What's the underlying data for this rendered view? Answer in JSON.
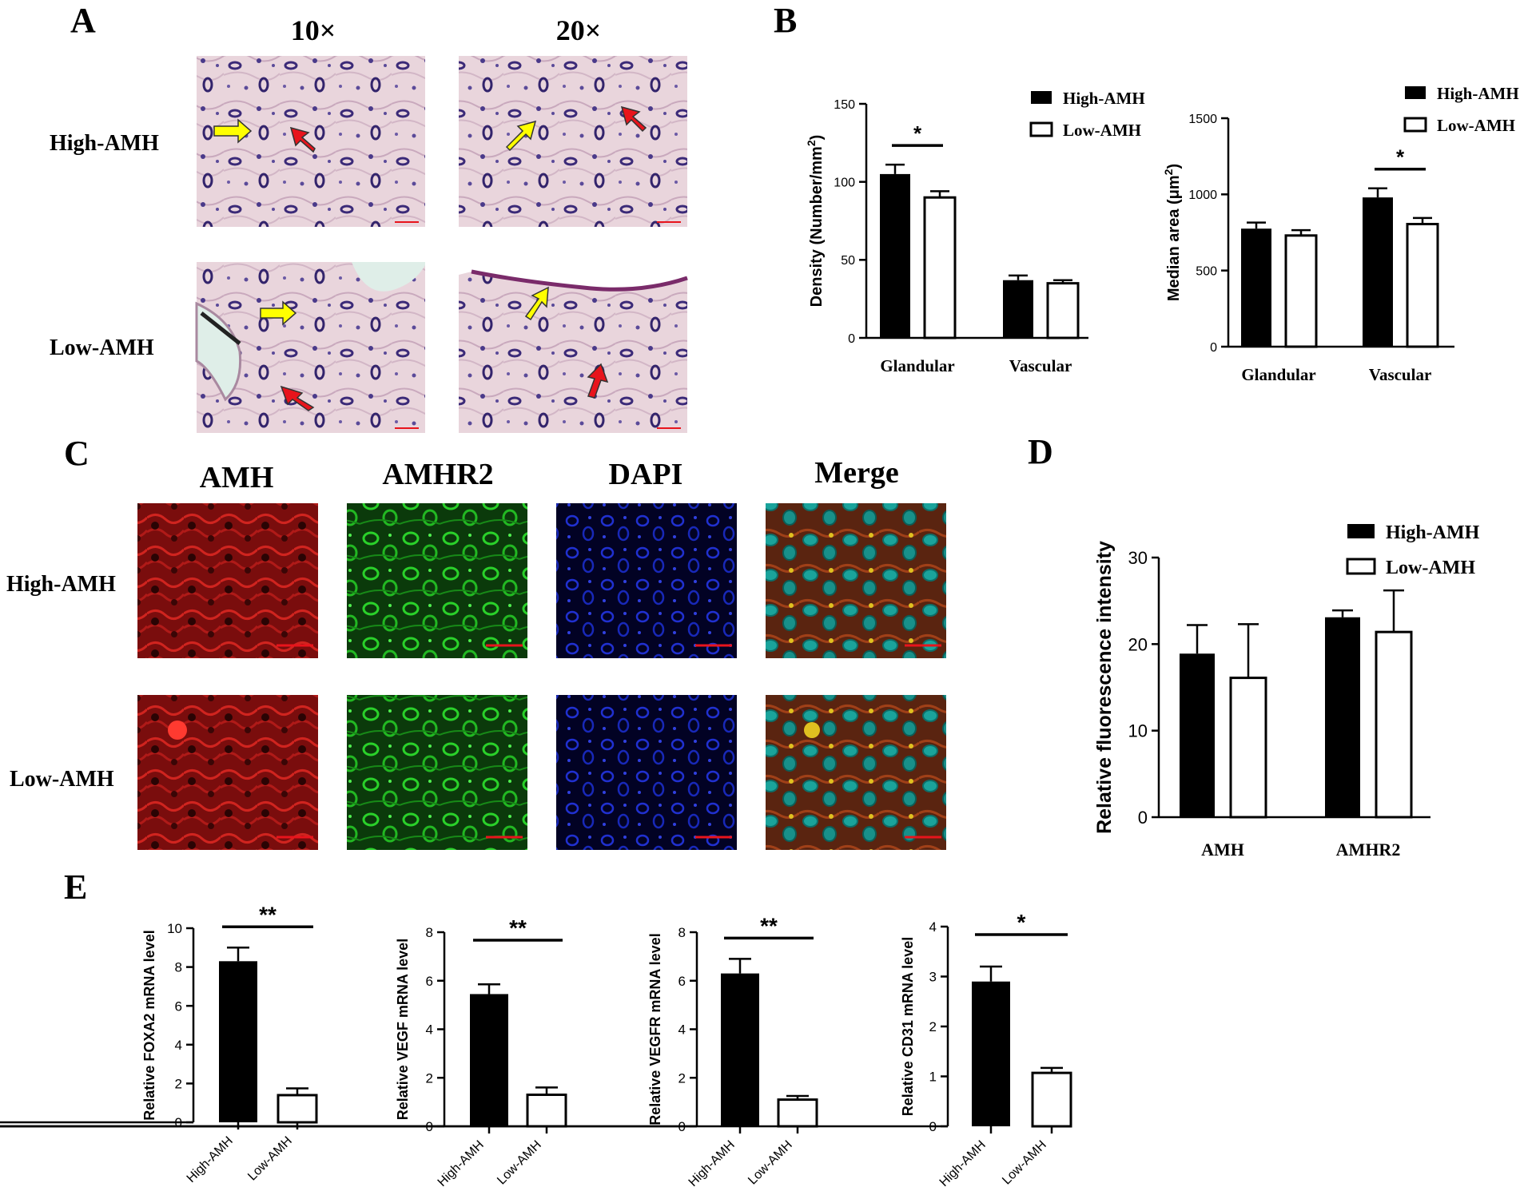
{
  "panels": {
    "A": {
      "letter": "A",
      "col_labels": [
        "10×",
        "20×"
      ],
      "row_labels": [
        "High-AMH",
        "Low-AMH"
      ]
    },
    "B": {
      "letter": "B"
    },
    "C": {
      "letter": "C",
      "col_labels": [
        "AMH",
        "AMHR2",
        "DAPI",
        "Merge"
      ],
      "row_labels": [
        "High-AMH",
        "Low-AMH"
      ]
    },
    "D": {
      "letter": "D"
    },
    "E": {
      "letter": "E"
    }
  },
  "colors": {
    "high": "#000000",
    "low": "#ffffff",
    "arrow_yellow": "#ffff00",
    "arrow_red": "#e8141c",
    "scale_bar": "#e8141c"
  },
  "chart_data": [
    {
      "id": "B-density",
      "type": "bar",
      "ylabel_main": "Density (Number/mm",
      "ylabel_sup": "2",
      "ylabel_end": ")",
      "categories": [
        "Glandular",
        "Vascular"
      ],
      "yticks": [
        "0",
        "50",
        "100",
        "150"
      ],
      "ylim": [
        0,
        150
      ],
      "series": [
        {
          "name": "High-AMH",
          "values": [
            105,
            37
          ],
          "errors": [
            6,
            3
          ]
        },
        {
          "name": "Low-AMH",
          "values": [
            90,
            35
          ],
          "errors": [
            4,
            2
          ]
        }
      ],
      "significance": [
        {
          "category": 0,
          "label": "*"
        }
      ],
      "legend": "top-right"
    },
    {
      "id": "B-area",
      "type": "bar",
      "ylabel_main": "Median area (μm",
      "ylabel_sup": "2",
      "ylabel_end": ")",
      "categories": [
        "Glandular",
        "Vascular"
      ],
      "yticks": [
        "0",
        "500",
        "1000",
        "1500"
      ],
      "ylim": [
        0,
        1500
      ],
      "series": [
        {
          "name": "High-AMH",
          "values": [
            775,
            980
          ],
          "errors": [
            40,
            60
          ]
        },
        {
          "name": "Low-AMH",
          "values": [
            730,
            805
          ],
          "errors": [
            35,
            40
          ]
        }
      ],
      "significance": [
        {
          "category": 1,
          "label": "*"
        }
      ],
      "legend": "top-right"
    },
    {
      "id": "D-fluorescence",
      "type": "bar",
      "ylabel_main": "Relative fluorescence intensity",
      "categories": [
        "AMH",
        "AMHR2"
      ],
      "yticks": [
        "0",
        "10",
        "20",
        "30"
      ],
      "ylim": [
        0,
        30
      ],
      "series": [
        {
          "name": "High-AMH",
          "values": [
            18.9,
            23.1
          ],
          "errors": [
            3.3,
            0.8
          ]
        },
        {
          "name": "Low-AMH",
          "values": [
            16.1,
            21.4
          ],
          "errors": [
            6.2,
            4.8
          ]
        }
      ],
      "legend": "top-right"
    },
    {
      "id": "E-FOXA2",
      "type": "bar",
      "ylabel_main": "Relative FOXA2 mRNA level",
      "categories": [
        "High-AMH",
        "Low-AMH"
      ],
      "yticks": [
        "0",
        "2",
        "4",
        "6",
        "8",
        "10"
      ],
      "ylim": [
        0,
        10
      ],
      "values": [
        8.3,
        1.4
      ],
      "errors": [
        0.7,
        0.35
      ],
      "significance_label": "**"
    },
    {
      "id": "E-VEGF",
      "type": "bar",
      "ylabel_main": "Relative VEGF mRNA level",
      "categories": [
        "High-AMH",
        "Low-AMH"
      ],
      "yticks": [
        "0",
        "2",
        "4",
        "6",
        "8"
      ],
      "ylim": [
        0,
        8
      ],
      "values": [
        5.45,
        1.3
      ],
      "errors": [
        0.4,
        0.3
      ],
      "significance_label": "**"
    },
    {
      "id": "E-VEGFR",
      "type": "bar",
      "ylabel_main": "Relative VEGFR mRNA level",
      "categories": [
        "High-AMH",
        "Low-AMH"
      ],
      "yticks": [
        "0",
        "2",
        "4",
        "6",
        "8"
      ],
      "ylim": [
        0,
        8
      ],
      "values": [
        6.3,
        1.1
      ],
      "errors": [
        0.6,
        0.15
      ],
      "significance_label": "**"
    },
    {
      "id": "E-CD31",
      "type": "bar",
      "ylabel_main": "Relative CD31 mRNA level",
      "categories": [
        "High-AMH",
        "Low-AMH"
      ],
      "yticks": [
        "0",
        "1",
        "2",
        "3",
        "4"
      ],
      "ylim": [
        0,
        4
      ],
      "values": [
        2.9,
        1.07
      ],
      "errors": [
        0.3,
        0.1
      ],
      "significance_label": "*"
    }
  ]
}
